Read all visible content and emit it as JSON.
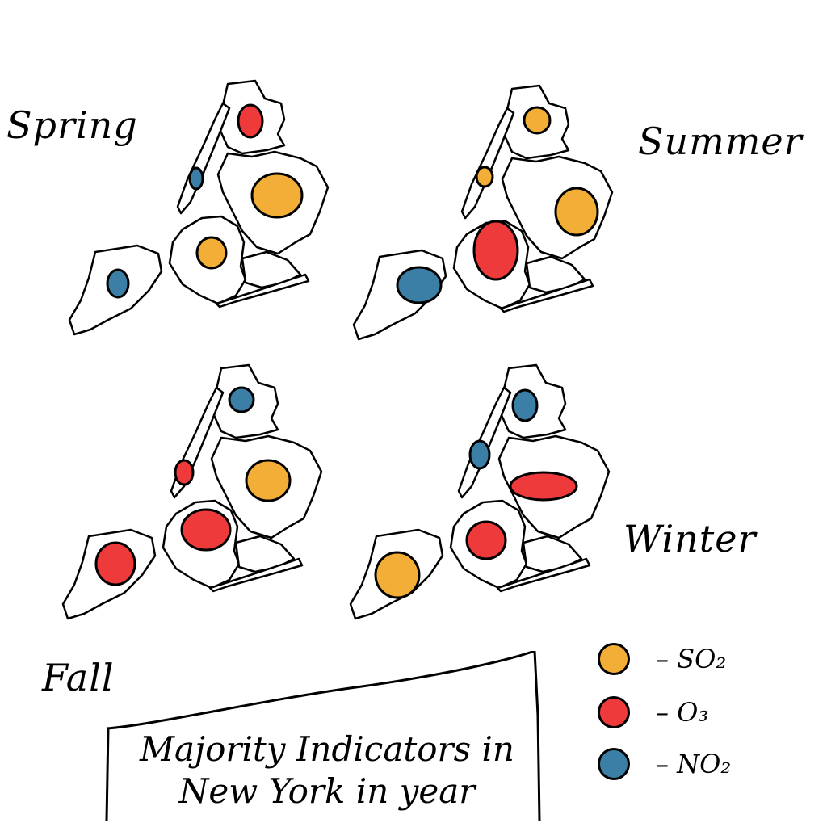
{
  "seasons": {
    "spring": "Spring",
    "summer": "Summer",
    "fall": "Fall",
    "winter": "Winter"
  },
  "title": {
    "line1": "Majority Indicators in",
    "line2": "New York in year"
  },
  "legend": [
    {
      "label": "– SO₂",
      "color": "#f2ae36",
      "pollutant": "SO2"
    },
    {
      "label": "– O₃",
      "color": "#ee3a3a",
      "pollutant": "O3"
    },
    {
      "label": "– NO₂",
      "color": "#3b7fa6",
      "pollutant": "NO2"
    }
  ],
  "colors": {
    "SO2": "#f2ae36",
    "O3": "#ee3a3a",
    "NO2": "#3b7fa6",
    "outline": "#000000"
  },
  "maps": [
    {
      "season": "Spring",
      "boroughs": {
        "Bronx": "O3",
        "Manhattan": "NO2",
        "Queens": "SO2",
        "Brooklyn": "SO2",
        "Staten Island": "NO2"
      }
    },
    {
      "season": "Summer",
      "boroughs": {
        "Bronx": "SO2",
        "Manhattan": "SO2",
        "Queens": "SO2",
        "Brooklyn": "O3",
        "Staten Island": "NO2"
      }
    },
    {
      "season": "Fall",
      "boroughs": {
        "Bronx": "NO2",
        "Manhattan": "O3",
        "Queens": "SO2",
        "Brooklyn": "O3",
        "Staten Island": "O3"
      }
    },
    {
      "season": "Winter",
      "boroughs": {
        "Bronx": "NO2",
        "Manhattan": "NO2",
        "Queens": "O3",
        "Brooklyn": "O3",
        "Staten Island": "SO2"
      }
    }
  ]
}
